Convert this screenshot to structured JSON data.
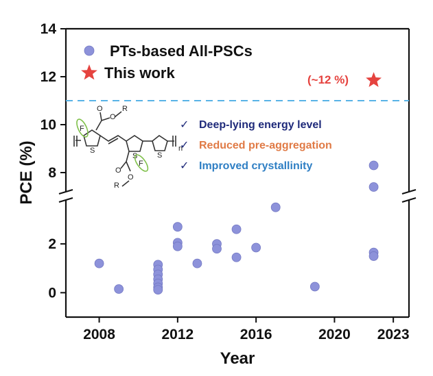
{
  "chart_data": {
    "type": "scatter",
    "title": "",
    "xlabel": "Year",
    "ylabel": "PCE (%)",
    "xlim": [
      2006.3,
      2023.8
    ],
    "x_ticks": [
      "2008",
      "2012",
      "2016",
      "2020",
      "2023"
    ],
    "y_ticks_lower": [
      "0",
      "2"
    ],
    "y_ticks_upper": [
      "8",
      "10",
      "12",
      "14"
    ],
    "ylim_lower": [
      -1,
      3.8
    ],
    "ylim_upper": [
      7.2,
      14
    ],
    "broken_y_axis": true,
    "grid": false,
    "legend_position": "top-left",
    "series": [
      {
        "name": "PTs-based All-PSCs",
        "marker": "circle",
        "color": "#8d92da",
        "points": [
          {
            "x": 2008,
            "y": 1.2
          },
          {
            "x": 2009,
            "y": 0.15
          },
          {
            "x": 2011,
            "y": 1.15
          },
          {
            "x": 2011,
            "y": 0.95
          },
          {
            "x": 2011,
            "y": 0.75
          },
          {
            "x": 2011,
            "y": 0.55
          },
          {
            "x": 2011,
            "y": 0.38
          },
          {
            "x": 2011,
            "y": 0.22
          },
          {
            "x": 2011,
            "y": 0.12
          },
          {
            "x": 2012,
            "y": 2.7
          },
          {
            "x": 2012,
            "y": 2.05
          },
          {
            "x": 2012,
            "y": 1.9
          },
          {
            "x": 2013,
            "y": 1.2
          },
          {
            "x": 2014,
            "y": 2.0
          },
          {
            "x": 2014,
            "y": 1.8
          },
          {
            "x": 2015,
            "y": 2.6
          },
          {
            "x": 2015,
            "y": 1.45
          },
          {
            "x": 2016,
            "y": 1.85
          },
          {
            "x": 2017,
            "y": 3.5
          },
          {
            "x": 2019,
            "y": 0.25
          },
          {
            "x": 2022,
            "y": 1.65
          },
          {
            "x": 2022,
            "y": 1.5
          },
          {
            "x": 2022,
            "y": 8.3
          },
          {
            "x": 2022,
            "y": 7.4
          }
        ]
      },
      {
        "name": "This work",
        "marker": "star",
        "color": "#e5433f",
        "points": [
          {
            "x": 2022,
            "y": 11.85
          }
        ]
      }
    ],
    "reference_line": {
      "y": 11,
      "style": "dashed",
      "color": "#57b3e6"
    },
    "annotations": {
      "this_work_label": "(~12 %)",
      "features": [
        {
          "check": "✓",
          "text": "Deep-lying energy level",
          "color": "#1f2a7a"
        },
        {
          "check": "✓",
          "text": "Reduced pre-aggregation",
          "color": "#e07a45"
        },
        {
          "check": "✓",
          "text": "Improved crystallinity",
          "color": "#2f7fc4"
        }
      ],
      "structure_labels": {
        "r1": "R",
        "r2": "R",
        "f1": "F",
        "f2": "F",
        "o1": "O",
        "o2": "O",
        "o3": "O",
        "o4": "O",
        "s1": "S",
        "s2": "S",
        "s3": "S",
        "n": "n"
      }
    }
  }
}
